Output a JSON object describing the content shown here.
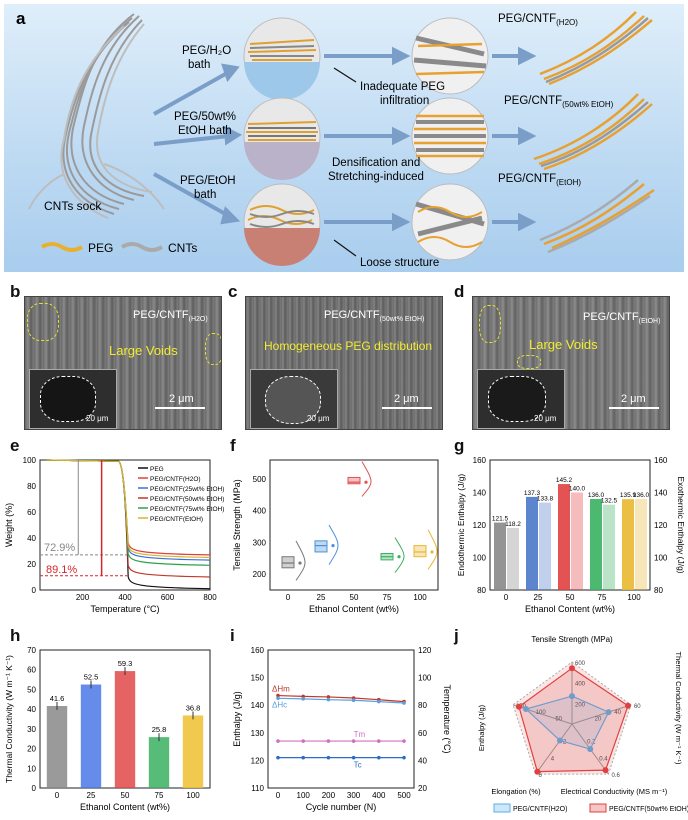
{
  "panel_a": {
    "letter": "a",
    "sock_label": "CNTs sock",
    "legend_peg": "PEG",
    "legend_cnts": "CNTs",
    "bath_h2o": "PEG/H₂O",
    "bath_word": "bath",
    "bath_etoh50_1": "PEG/50wt%",
    "bath_etoh50_2": "EtOH bath",
    "bath_etoh_1": "PEG/EtOH",
    "bath_etoh_2": "bath",
    "note_top_1": "Inadequate PEG",
    "note_top_2": "infiltration",
    "note_mid_1": "Densification and",
    "note_mid_2": "Stretching-induced",
    "note_bot": "Loose structure",
    "res_h2o": "PEG/CNTF",
    "res_h2o_sub": "(H2O)",
    "res_50": "PEG/CNTF",
    "res_50_sub": "(50wt% EtOH)",
    "res_etoh": "PEG/CNTF",
    "res_etoh_sub": "(EtOH)"
  },
  "panel_b": {
    "letter": "b",
    "title": "PEG/CNTF",
    "sub": "(H2O)",
    "note": "Large Voids",
    "scale": "2 μm",
    "inset_scale": "20 μm"
  },
  "panel_c": {
    "letter": "c",
    "title": "PEG/CNTF",
    "sub": "(50wt% EtOH)",
    "note": "Homogeneous PEG distribution",
    "scale": "2 μm",
    "inset_scale": "20 μm"
  },
  "panel_d": {
    "letter": "d",
    "title": "PEG/CNTF",
    "sub": "(EtOH)",
    "note": "Large Voids",
    "scale": "2 μm",
    "inset_scale": "20 μm"
  },
  "chart_data": [
    {
      "panel": "e",
      "type": "line",
      "xlabel": "Temperature (°C)",
      "ylabel": "Weight (%)",
      "xlim": [
        0,
        800
      ],
      "ylim": [
        0,
        100
      ],
      "xticks": [
        200,
        400,
        600,
        800
      ],
      "yticks": [
        0,
        20,
        40,
        60,
        80,
        100
      ],
      "legend": [
        "PEG",
        "PEG/CNTF(H2O)",
        "PEG/CNTF(25wt% EtOH)",
        "PEG/CNTF(50wt% EtOH)",
        "PEG/CNTF(75wt% EtOH)",
        "PEG/CNTF(EtOH)"
      ],
      "series": [
        {
          "name": "PEG",
          "color": "#111111",
          "residue": 2
        },
        {
          "name": "PEG/CNTF(H2O)",
          "color": "#e0403a",
          "residue": 28
        },
        {
          "name": "PEG/CNTF(25wt% EtOH)",
          "color": "#3a6fd8",
          "residue": 24
        },
        {
          "name": "PEG/CNTF(50wt% EtOH)",
          "color": "#c0392b",
          "residue": 11
        },
        {
          "name": "PEG/CNTF(75wt% EtOH)",
          "color": "#2ea24a",
          "residue": 20
        },
        {
          "name": "PEG/CNTF(EtOH)",
          "color": "#d6b52a",
          "residue": 26
        }
      ],
      "annotations": [
        {
          "text": "72.9%",
          "color": "#888888"
        },
        {
          "text": "89.1%",
          "color": "#d8232a"
        }
      ]
    },
    {
      "panel": "f",
      "type": "box",
      "xlabel": "Ethanol Content (wt%)",
      "ylabel": "Tensile Strength (MPa)",
      "categories": [
        "0",
        "25",
        "50",
        "75",
        "100"
      ],
      "ylim": [
        150,
        560
      ],
      "yticks": [
        200,
        300,
        400,
        500
      ],
      "medians": [
        235,
        290,
        490,
        255,
        270
      ],
      "q1": [
        220,
        270,
        485,
        245,
        255
      ],
      "q3": [
        255,
        305,
        505,
        265,
        290
      ],
      "colors": [
        "#777777",
        "#4a90d9",
        "#e05050",
        "#3ab060",
        "#e8b830"
      ]
    },
    {
      "panel": "g",
      "type": "bar",
      "xlabel": "Ethanol Content (wt%)",
      "ylabel": "Endothermic Enthalpy (J/g)",
      "y2label": "Exothermic Enthalpy (J/g)",
      "categories": [
        "0",
        "25",
        "50",
        "75",
        "100"
      ],
      "ylim": [
        80,
        160
      ],
      "yticks": [
        80,
        100,
        120,
        140,
        160
      ],
      "series": [
        {
          "name": "Endothermic",
          "values": [
            121.5,
            137.3,
            145.2,
            136.0,
            135.9
          ]
        },
        {
          "name": "Exothermic",
          "values": [
            118.2,
            133.8,
            140.0,
            132.5,
            136.0
          ]
        }
      ],
      "colors": [
        "#888888",
        "#4a78c8",
        "#e04040",
        "#3ab060",
        "#e8b830"
      ]
    },
    {
      "panel": "h",
      "type": "bar",
      "xlabel": "Ethanol Content (wt%)",
      "ylabel": "Thermal Conductivity (W m⁻¹ K⁻¹)",
      "categories": [
        "0",
        "25",
        "50",
        "75",
        "100"
      ],
      "values": [
        41.6,
        52.5,
        59.3,
        25.8,
        36.8
      ],
      "ylim": [
        0,
        70
      ],
      "yticks": [
        0,
        10,
        20,
        30,
        40,
        50,
        60,
        70
      ],
      "colors": [
        "#888888",
        "#4a78e8",
        "#e04848",
        "#3ab060",
        "#f0c030"
      ]
    },
    {
      "panel": "i",
      "type": "line",
      "xlabel": "Cycle number (N)",
      "ylabel": "Enthalpy (J/g)",
      "y2label": "Temperature (°C)",
      "x": [
        0,
        100,
        200,
        300,
        400,
        500
      ],
      "ylim": [
        110,
        160
      ],
      "yticks": [
        110,
        120,
        130,
        140,
        150,
        160
      ],
      "y2ticks": [
        20,
        40,
        60,
        80,
        100,
        120
      ],
      "series": [
        {
          "name": "ΔHm",
          "values": [
            143.5,
            143.2,
            143.0,
            142.6,
            142.0,
            141.3
          ],
          "color": "#c0392b"
        },
        {
          "name": "ΔHc",
          "values": [
            142.5,
            142.3,
            142.0,
            141.8,
            141.3,
            140.8
          ],
          "color": "#5aa0e0"
        },
        {
          "name": "Tm",
          "values": [
            127,
            127,
            127,
            127,
            127,
            127
          ],
          "color": "#d070c0"
        },
        {
          "name": "Tc",
          "values": [
            121,
            121,
            121,
            121,
            121,
            121
          ],
          "color": "#2b6cc4"
        }
      ]
    },
    {
      "panel": "j",
      "type": "radar",
      "axes": [
        "Tensile Strength (MPa)",
        "Thermal Conductivity (W m⁻¹ K⁻¹)",
        "Electrical Conductivity (MS m⁻¹)",
        "Elongation (%)",
        "Enthalpy (J/g)"
      ],
      "legend": [
        "PEG/CNTF(H2O)",
        "PEG/CNTF(50wt% EtOH)"
      ],
      "ring_labels": [
        {
          "axis": 0,
          "labels": [
            "200",
            "400",
            "600"
          ]
        },
        {
          "axis": 1,
          "labels": [
            "20",
            "40",
            "60"
          ]
        },
        {
          "axis": 2,
          "labels": [
            "0.2",
            "0.4",
            "0.6"
          ]
        },
        {
          "axis": 3,
          "labels": [
            "2",
            "4",
            "6"
          ]
        },
        {
          "axis": 4,
          "labels": [
            "50",
            "100",
            "150"
          ]
        }
      ],
      "series": [
        {
          "name": "PEG/CNTF(H2O)",
          "values": [
            0.45,
            0.62,
            0.5,
            0.33,
            0.78
          ],
          "color": "#5ab0e8"
        },
        {
          "name": "PEG/CNTF(50wt% EtOH)",
          "values": [
            0.9,
            0.95,
            0.92,
            0.95,
            0.9
          ],
          "color": "#e04040"
        }
      ]
    }
  ]
}
